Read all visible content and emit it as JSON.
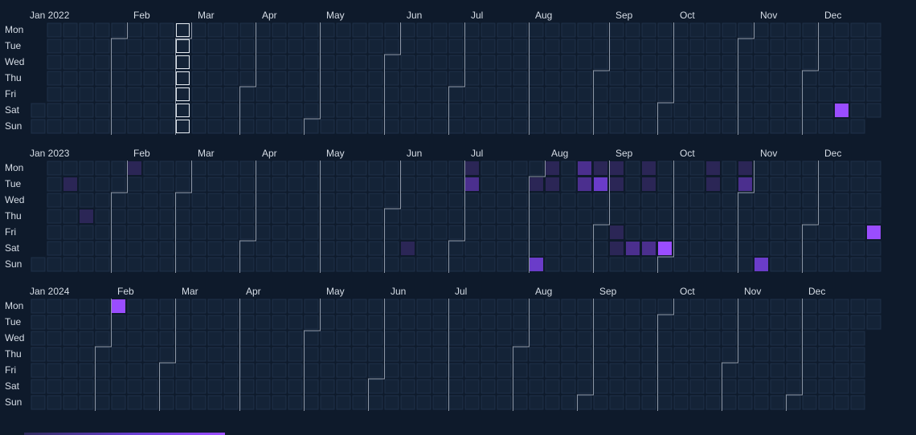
{
  "chart_data": {
    "type": "heatmap",
    "title": "",
    "layout": "calendar (week columns, weekday rows, one block per year)",
    "weekday_labels": [
      "Mon",
      "Tue",
      "Wed",
      "Thu",
      "Fri",
      "Sat",
      "Sun"
    ],
    "years": [
      {
        "label": "Jan 2022",
        "year": 2022,
        "month_labels": [
          "Feb",
          "Mar",
          "Apr",
          "May",
          "Jun",
          "Jul",
          "Aug",
          "Sep",
          "Oct",
          "Nov",
          "Dec"
        ],
        "highlighted_week_starting": "2022-02-28"
      },
      {
        "label": "Jan 2023",
        "year": 2023,
        "month_labels": [
          "Feb",
          "Mar",
          "Apr",
          "May",
          "Jun",
          "Jul",
          "Aug",
          "Sep",
          "Oct",
          "Nov",
          "Dec"
        ]
      },
      {
        "label": "Jan 2024",
        "year": 2024,
        "month_labels": [
          "Feb",
          "Mar",
          "Apr",
          "May",
          "Jun",
          "Jul",
          "Aug",
          "Sep",
          "Oct",
          "Nov",
          "Dec"
        ]
      }
    ],
    "values": [
      {
        "date": "2022-12-17",
        "value": 4
      },
      {
        "date": "2023-01-10",
        "value": 1
      },
      {
        "date": "2023-01-19",
        "value": 1
      },
      {
        "date": "2023-02-06",
        "value": 1
      },
      {
        "date": "2023-06-10",
        "value": 1
      },
      {
        "date": "2023-07-03",
        "value": 1
      },
      {
        "date": "2023-07-04",
        "value": 2
      },
      {
        "date": "2023-08-01",
        "value": 1
      },
      {
        "date": "2023-08-06",
        "value": 3
      },
      {
        "date": "2023-08-07",
        "value": 1
      },
      {
        "date": "2023-08-08",
        "value": 1
      },
      {
        "date": "2023-08-21",
        "value": 2
      },
      {
        "date": "2023-08-22",
        "value": 2
      },
      {
        "date": "2023-08-28",
        "value": 1
      },
      {
        "date": "2023-08-29",
        "value": 3
      },
      {
        "date": "2023-09-04",
        "value": 1
      },
      {
        "date": "2023-09-05",
        "value": 1
      },
      {
        "date": "2023-09-08",
        "value": 1
      },
      {
        "date": "2023-09-09",
        "value": 1
      },
      {
        "date": "2023-09-16",
        "value": 2
      },
      {
        "date": "2023-09-18",
        "value": 1
      },
      {
        "date": "2023-09-19",
        "value": 1
      },
      {
        "date": "2023-09-23",
        "value": 2
      },
      {
        "date": "2023-09-30",
        "value": 4
      },
      {
        "date": "2023-10-16",
        "value": 1
      },
      {
        "date": "2023-10-17",
        "value": 1
      },
      {
        "date": "2023-10-30",
        "value": 1
      },
      {
        "date": "2023-10-31",
        "value": 2
      },
      {
        "date": "2023-11-12",
        "value": 3
      },
      {
        "date": "2023-12-29",
        "value": 4
      },
      {
        "date": "2024-02-05",
        "value": 4
      }
    ],
    "value_range": [
      0,
      4
    ],
    "colors": {
      "background": "#0e1a2b",
      "empty_cell": "#142337",
      "empty_cell_border": "#1f3048",
      "month_divider": "#8d97a6",
      "highlight_border": "#e6ebf1",
      "label_text": "#d6dde6",
      "scale": [
        "#142337",
        "#2b2656",
        "#4b2f8e",
        "#6a3cc9",
        "#9a4dff"
      ]
    },
    "grid": false,
    "legend": "none"
  }
}
